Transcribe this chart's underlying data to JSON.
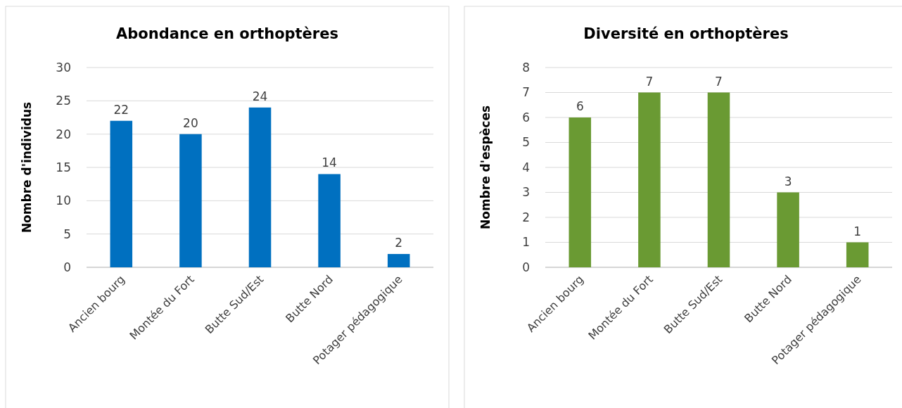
{
  "chart_data": [
    {
      "type": "bar",
      "title": "Abondance en orthoptères",
      "ylabel": "Nombre d'individus",
      "categories": [
        "Ancien bourg",
        "Montée du Fort",
        "Butte Sud/Est",
        "Butte Nord",
        "Potager pédagogique"
      ],
      "values": [
        22,
        20,
        24,
        14,
        2
      ],
      "color": "#0070c0",
      "ylim": [
        0,
        30
      ],
      "yticks": [
        0,
        5,
        10,
        15,
        20,
        25,
        30
      ],
      "grid": "y",
      "data_labels": true
    },
    {
      "type": "bar",
      "title": "Diversité en orthoptères",
      "ylabel": "Nombre d'espèces",
      "categories": [
        "Ancien bourg",
        "Montée du Fort",
        "Butte Sud/Est",
        "Butte Nord",
        "Potager pédagogique"
      ],
      "values": [
        6,
        7,
        7,
        3,
        1
      ],
      "color": "#6a9a33",
      "ylim": [
        0,
        8
      ],
      "yticks": [
        0,
        1,
        2,
        3,
        4,
        5,
        6,
        7,
        8
      ],
      "grid": "y",
      "data_labels": true
    }
  ]
}
